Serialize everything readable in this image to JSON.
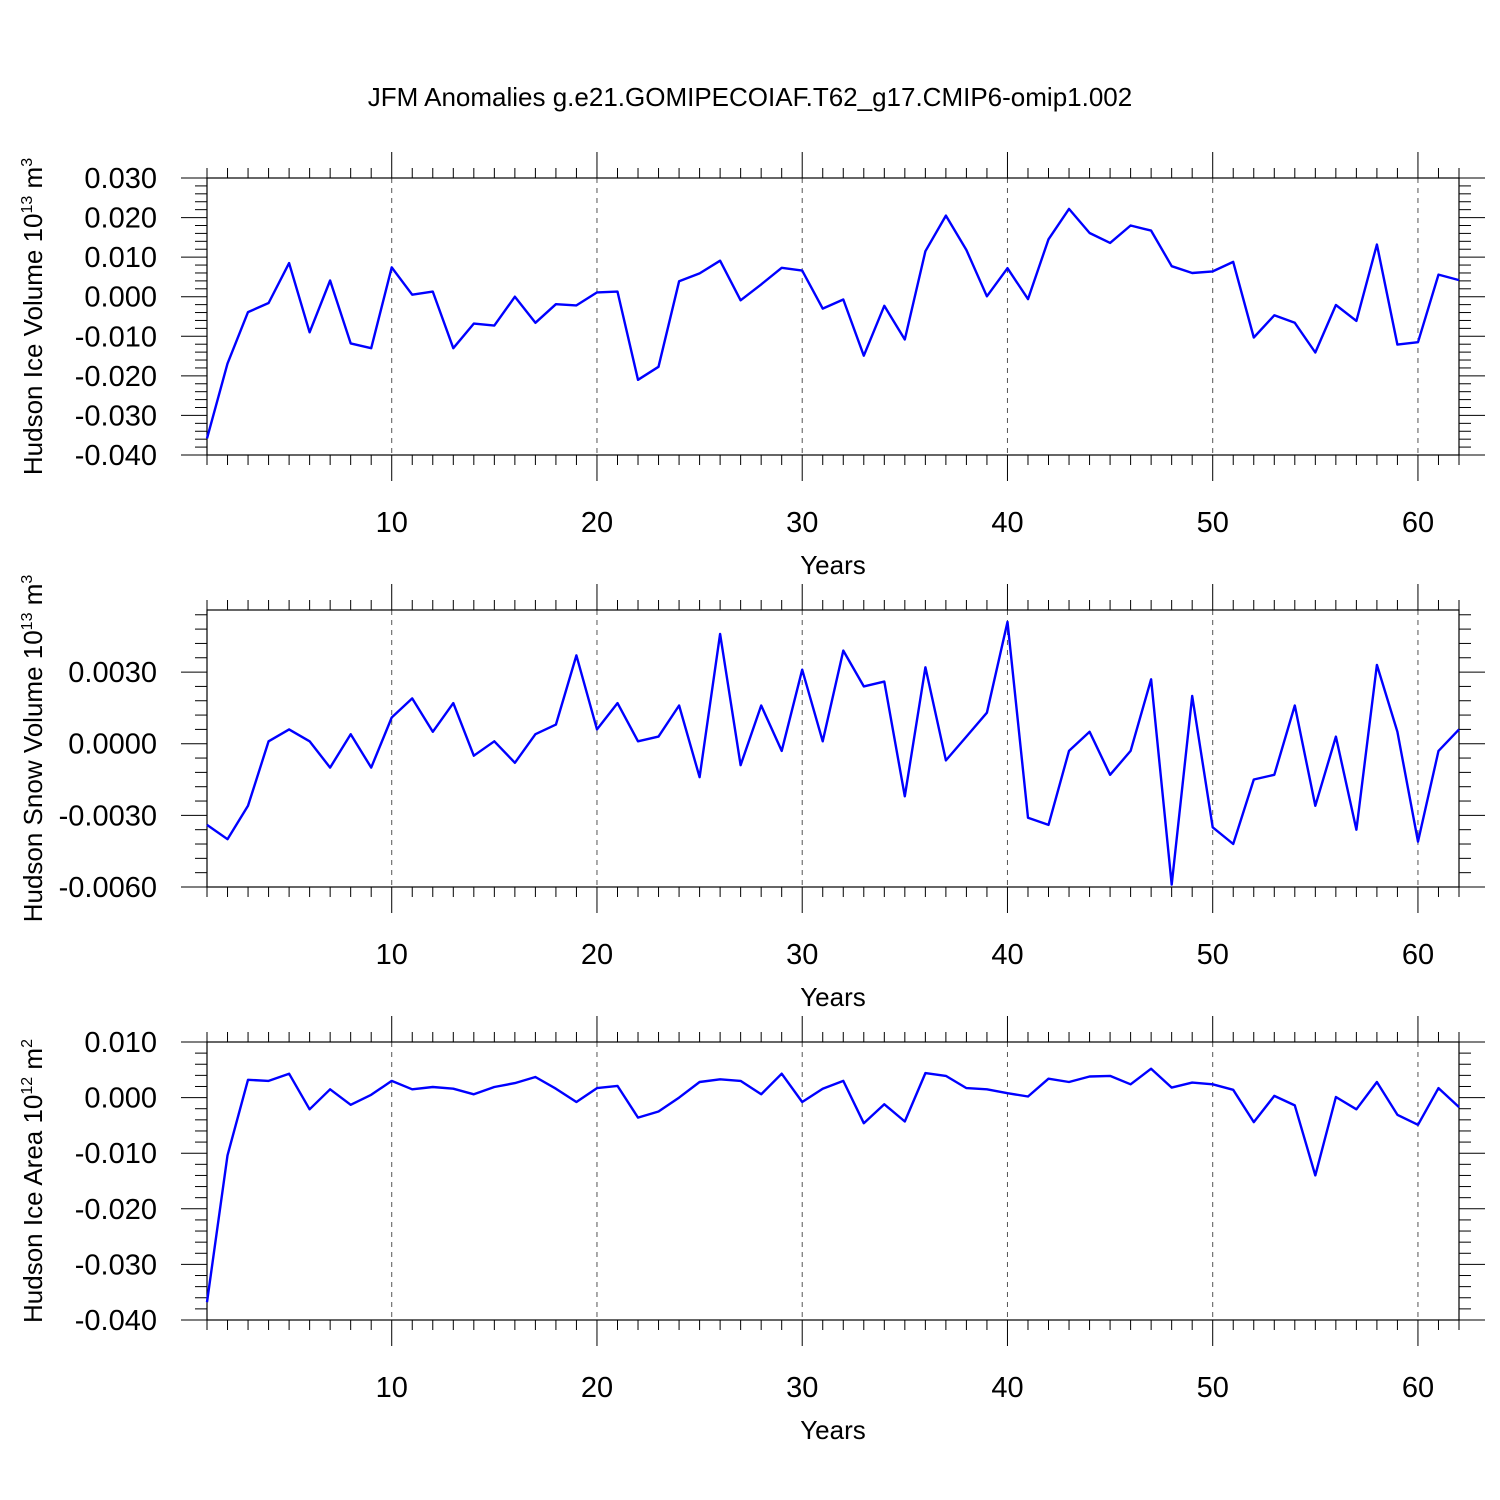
{
  "title": "JFM Anomalies g.e21.GOMIPECOIAF.T62_g17.CMIP6-omip1.002",
  "line_color": "#0000ff",
  "chart_data": [
    {
      "type": "line",
      "ylabel_main": "Hudson Ice Volume 10",
      "ylabel_exp": "13",
      "ylabel_unit": "m",
      "ylabel_unit_exp": "3",
      "xlabel": "Years",
      "xlim": [
        1,
        62
      ],
      "ylim": [
        -0.04,
        0.03
      ],
      "xticks": [
        10,
        20,
        30,
        40,
        50,
        60
      ],
      "yticks": [
        -0.04,
        -0.03,
        -0.02,
        -0.01,
        0,
        0.01,
        0.02,
        0.03
      ],
      "ytick_labels": [
        "-0.040",
        "-0.030",
        "-0.020",
        "-0.010",
        "0.000",
        "0.010",
        "0.020",
        "0.030"
      ],
      "x": [
        1,
        2,
        3,
        4,
        5,
        6,
        7,
        8,
        9,
        10,
        11,
        12,
        13,
        14,
        15,
        16,
        17,
        18,
        19,
        20,
        21,
        22,
        23,
        24,
        25,
        26,
        27,
        28,
        29,
        30,
        31,
        32,
        33,
        34,
        35,
        36,
        37,
        38,
        39,
        40,
        41,
        42,
        43,
        44,
        45,
        46,
        47,
        48,
        49,
        50,
        51,
        52,
        53,
        54,
        55,
        56,
        57,
        58,
        59,
        60,
        61,
        62
      ],
      "values": [
        -0.0358,
        -0.0169,
        -0.0039,
        -0.0016,
        0.0085,
        -0.009,
        0.0041,
        -0.0118,
        -0.013,
        0.0074,
        0.0005,
        0.0013,
        -0.013,
        -0.0068,
        -0.0073,
        0.0,
        -0.0066,
        -0.0019,
        -0.0022,
        0.0011,
        0.0013,
        -0.021,
        -0.0177,
        0.0039,
        0.0059,
        0.0091,
        -0.0009,
        0.0031,
        0.0073,
        0.0066,
        -0.003,
        -0.0007,
        -0.0149,
        -0.0023,
        -0.0108,
        0.0115,
        0.0205,
        0.0118,
        0.0001,
        0.0072,
        -0.0006,
        0.0145,
        0.0222,
        0.0161,
        0.0136,
        0.018,
        0.0167,
        0.0077,
        0.006,
        0.0064,
        0.0088,
        -0.0103,
        -0.0047,
        -0.0066,
        -0.0141,
        -0.0021,
        -0.0061,
        0.0132,
        -0.0121,
        -0.0115,
        0.0056,
        0.0042
      ]
    },
    {
      "type": "line",
      "ylabel_main": "Hudson Snow Volume 10",
      "ylabel_exp": "13",
      "ylabel_unit": "m",
      "ylabel_unit_exp": "3",
      "xlabel": "Years",
      "xlim": [
        1,
        62
      ],
      "ylim": [
        -0.006,
        0.0056
      ],
      "xticks": [
        10,
        20,
        30,
        40,
        50,
        60
      ],
      "yticks": [
        -0.006,
        -0.003,
        0,
        0.003
      ],
      "ytick_labels": [
        "-0.0060",
        "-0.0030",
        "0.0000",
        "0.0030"
      ],
      "x": [
        1,
        2,
        3,
        4,
        5,
        6,
        7,
        8,
        9,
        10,
        11,
        12,
        13,
        14,
        15,
        16,
        17,
        18,
        19,
        20,
        21,
        22,
        23,
        24,
        25,
        26,
        27,
        28,
        29,
        30,
        31,
        32,
        33,
        34,
        35,
        36,
        37,
        38,
        39,
        40,
        41,
        42,
        43,
        44,
        45,
        46,
        47,
        48,
        49,
        50,
        51,
        52,
        53,
        54,
        55,
        56,
        57,
        58,
        59,
        60,
        61,
        62
      ],
      "values": [
        -0.0034,
        -0.004,
        -0.0026,
        0.0001,
        0.0006,
        0.0001,
        -0.001,
        0.0004,
        -0.001,
        0.0011,
        0.0019,
        0.0005,
        0.0017,
        -0.0005,
        0.0001,
        -0.0008,
        0.0004,
        0.0008,
        0.0037,
        0.0006,
        0.0017,
        0.0001,
        0.0003,
        0.0016,
        -0.0014,
        0.0046,
        -0.0009,
        0.0016,
        -0.0003,
        0.0031,
        0.0001,
        0.0039,
        0.0024,
        0.0026,
        -0.0022,
        0.0032,
        -0.0007,
        0.0003,
        0.0013,
        0.0051,
        -0.0031,
        -0.0034,
        -0.0003,
        0.0005,
        -0.0013,
        -0.0003,
        0.0027,
        -0.0059,
        0.002,
        -0.0035,
        -0.0042,
        -0.0015,
        -0.0013,
        0.0016,
        -0.0026,
        0.0003,
        -0.0036,
        0.0033,
        0.0005,
        -0.0041,
        -0.0003,
        0.0006
      ]
    },
    {
      "type": "line",
      "ylabel_main": "Hudson Ice Area 10",
      "ylabel_exp": "12",
      "ylabel_unit": "m",
      "ylabel_unit_exp": "2",
      "xlabel": "Years",
      "xlim": [
        1,
        62
      ],
      "ylim": [
        -0.04,
        0.01
      ],
      "xticks": [
        10,
        20,
        30,
        40,
        50,
        60
      ],
      "yticks": [
        -0.04,
        -0.03,
        -0.02,
        -0.01,
        0,
        0.01
      ],
      "ytick_labels": [
        "-0.040",
        "-0.030",
        "-0.020",
        "-0.010",
        "0.000",
        "0.010"
      ],
      "x": [
        1,
        2,
        3,
        4,
        5,
        6,
        7,
        8,
        9,
        10,
        11,
        12,
        13,
        14,
        15,
        16,
        17,
        18,
        19,
        20,
        21,
        22,
        23,
        24,
        25,
        26,
        27,
        28,
        29,
        30,
        31,
        32,
        33,
        34,
        35,
        36,
        37,
        38,
        39,
        40,
        41,
        42,
        43,
        44,
        45,
        46,
        47,
        48,
        49,
        50,
        51,
        52,
        53,
        54,
        55,
        56,
        57,
        58,
        59,
        60,
        61,
        62
      ],
      "values": [
        -0.0368,
        -0.0104,
        0.0032,
        0.003,
        0.0043,
        -0.0021,
        0.0015,
        -0.0013,
        0.0005,
        0.003,
        0.0015,
        0.0019,
        0.0016,
        0.0006,
        0.0019,
        0.0026,
        0.0037,
        0.0016,
        -0.0008,
        0.0017,
        0.0021,
        -0.0036,
        -0.0025,
        0.0,
        0.0028,
        0.0033,
        0.003,
        0.0006,
        0.0043,
        -0.0008,
        0.0016,
        0.003,
        -0.0046,
        -0.0012,
        -0.0043,
        0.0044,
        0.0039,
        0.0017,
        0.0015,
        0.0008,
        0.0002,
        0.0034,
        0.0028,
        0.0038,
        0.0039,
        0.0024,
        0.0052,
        0.0018,
        0.0027,
        0.0024,
        0.0014,
        -0.0044,
        0.0003,
        -0.0014,
        -0.014,
        0.0001,
        -0.0021,
        0.0028,
        -0.0031,
        -0.0049,
        0.0017,
        -0.0017
      ]
    }
  ]
}
